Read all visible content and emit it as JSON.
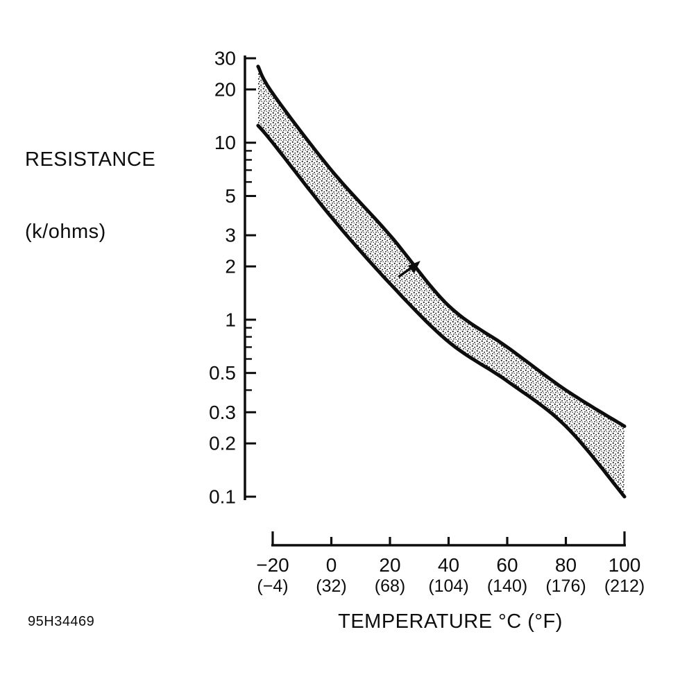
{
  "figure": {
    "id_code": "95H34469",
    "background": "#ffffff",
    "ink_color": "#0d0d0d",
    "y_axis": {
      "title_line1": "RESISTANCE",
      "title_line2": "(k/ohms)",
      "scale": "log",
      "major_ticks": [
        "30",
        "20",
        "10",
        "5",
        "3",
        "2",
        "1",
        "0.5",
        "0.3",
        "0.2",
        "0.1"
      ],
      "minor_ticks": [
        9,
        8,
        7,
        6,
        0.9,
        0.8,
        0.7,
        0.6,
        0.4
      ]
    },
    "x_axis": {
      "title": "TEMPERATURE °C (°F)",
      "ticks_celsius": [
        "−20",
        "0",
        "20",
        "40",
        "60",
        "80",
        "100"
      ],
      "ticks_fahrenheit": [
        "(−4)",
        "(32)",
        "(68)",
        "(104)",
        "(140)",
        "(176)",
        "(212)"
      ]
    }
  },
  "chart_data": {
    "type": "area",
    "title": "",
    "xlabel": "TEMPERATURE °C (°F)",
    "ylabel": "RESISTANCE (k/ohms)",
    "y_scale": "log",
    "ylim": [
      0.1,
      30
    ],
    "xlim_ticks": [
      -20,
      100
    ],
    "grid": false,
    "legend": false,
    "x_celsius": [
      -25,
      -20,
      0,
      20,
      40,
      60,
      80,
      100
    ],
    "series": [
      {
        "name": "upper_limit_kohms",
        "values": [
          27,
          19,
          7,
          3,
          1.2,
          0.7,
          0.4,
          0.25
        ]
      },
      {
        "name": "lower_limit_kohms",
        "values": [
          12.5,
          10,
          3.8,
          1.6,
          0.75,
          0.45,
          0.25,
          0.1
        ]
      }
    ],
    "band_fill": "gray_stipple",
    "marker_arrow": {
      "at_celsius": 28,
      "at_kohms": 2
    }
  }
}
